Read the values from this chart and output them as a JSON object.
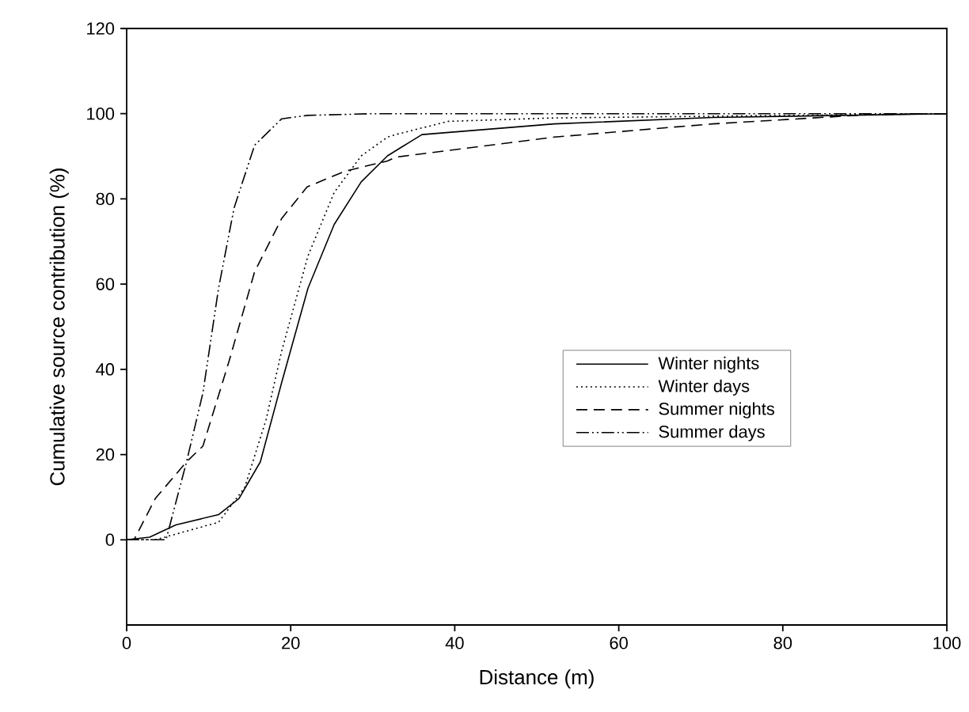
{
  "chart_data": {
    "type": "line",
    "xlabel": "Distance (m)",
    "ylabel": "Cumulative source contribution (%)",
    "xlim": [
      0,
      100
    ],
    "ylim": [
      -20,
      120
    ],
    "xticks": [
      0,
      20,
      40,
      60,
      80,
      100
    ],
    "yticks": [
      0,
      20,
      40,
      60,
      80,
      100,
      120
    ],
    "legend": "right",
    "series": [
      {
        "name": "Winter nights",
        "color": "#000000",
        "line_style": "solid",
        "x": [
          0,
          2.8,
          6,
          11.2,
          13.7,
          16.3,
          18.9,
          22.1,
          25.3,
          28.6,
          31.8,
          34.4,
          36,
          52.1,
          71.4,
          100
        ],
        "values": [
          0,
          0.6,
          3.5,
          5.9,
          9.7,
          18.3,
          36.9,
          59,
          74,
          84,
          90.1,
          93.2,
          95.1,
          97.6,
          99.1,
          100
        ]
      },
      {
        "name": "Winter days",
        "color": "#000000",
        "line_style": "dotted",
        "x": [
          0,
          3.5,
          11.2,
          14.4,
          17,
          18.9,
          22.1,
          25.3,
          28.6,
          31.8,
          32.8,
          39.2,
          52.1,
          100
        ],
        "values": [
          0,
          0,
          4.1,
          12.3,
          28.2,
          44.3,
          66.6,
          81.5,
          90.1,
          94.5,
          95.1,
          98.2,
          99,
          100
        ]
      },
      {
        "name": "Summer nights",
        "color": "#000000",
        "line_style": "dashed",
        "x": [
          0,
          0.9,
          3.5,
          7.3,
          9.3,
          12.5,
          15.6,
          18.9,
          22,
          26.6,
          31.8,
          32.8,
          52.1,
          71.4,
          90.7,
          100
        ],
        "values": [
          0,
          0,
          9.7,
          18.3,
          22,
          42,
          62.9,
          75.4,
          82.8,
          86.5,
          88.9,
          89.8,
          94.5,
          97.6,
          99.8,
          100
        ]
      },
      {
        "name": "Summer days",
        "color": "#000000",
        "line_style": "dashdotdot",
        "x": [
          0,
          4.8,
          7.3,
          9.3,
          11.2,
          13.1,
          15.6,
          18.9,
          22,
          30,
          100
        ],
        "values": [
          0,
          0,
          18.3,
          34.5,
          59,
          77.9,
          92.6,
          98.8,
          99.6,
          100,
          100
        ]
      }
    ]
  }
}
